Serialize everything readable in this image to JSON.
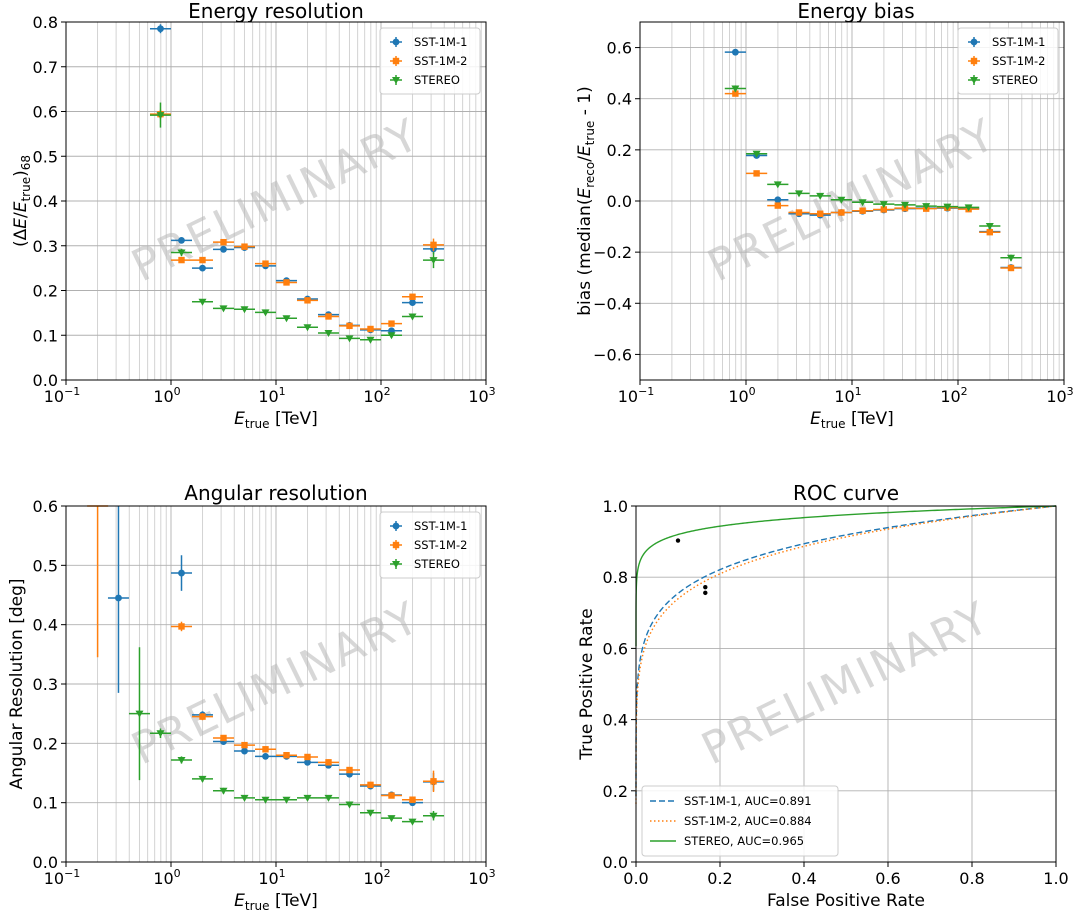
{
  "colors": {
    "sst1": "#1f77b4",
    "sst2": "#ff7f0e",
    "stereo": "#2ca02c",
    "grid": "#b0b0b0",
    "watermark": "#b8b8b8"
  },
  "watermark": "PRELIMINARY",
  "chart_data": [
    {
      "type": "scatter",
      "title": "Energy resolution",
      "xlabel": "E_true [TeV]",
      "ylabel": "(ΔE/E_true)_68",
      "xscale": "log",
      "xlim": [
        0.1,
        1000
      ],
      "ylim": [
        0,
        0.8
      ],
      "grid": true,
      "legend": "top-right",
      "yticks": [
        "0.0",
        "0.1",
        "0.2",
        "0.3",
        "0.4",
        "0.5",
        "0.6",
        "0.7",
        "0.8"
      ],
      "series": [
        {
          "name": "SST-1M-1",
          "marker": "circle",
          "color": "#1f77b4",
          "points": [
            [
              0.794,
              0.785,
              0.01
            ],
            [
              1.259,
              0.312,
              0.006
            ],
            [
              1.995,
              0.25,
              0.005
            ],
            [
              3.162,
              0.292,
              0.005
            ],
            [
              5.012,
              0.296,
              0.005
            ],
            [
              7.943,
              0.255,
              0.005
            ],
            [
              12.59,
              0.222,
              0.005
            ],
            [
              19.95,
              0.181,
              0.005
            ],
            [
              31.62,
              0.146,
              0.005
            ],
            [
              50.12,
              0.122,
              0.005
            ],
            [
              79.43,
              0.112,
              0.005
            ],
            [
              125.9,
              0.11,
              0.006
            ],
            [
              199.5,
              0.173,
              0.006
            ],
            [
              316.2,
              0.293,
              0.012
            ]
          ]
        },
        {
          "name": "SST-1M-2",
          "marker": "square",
          "color": "#ff7f0e",
          "points": [
            [
              0.794,
              0.594,
              0.01
            ],
            [
              1.259,
              0.268,
              0.006
            ],
            [
              1.995,
              0.268,
              0.005
            ],
            [
              3.162,
              0.308,
              0.005
            ],
            [
              5.012,
              0.298,
              0.005
            ],
            [
              7.943,
              0.26,
              0.005
            ],
            [
              12.59,
              0.218,
              0.005
            ],
            [
              19.95,
              0.178,
              0.005
            ],
            [
              31.62,
              0.142,
              0.005
            ],
            [
              50.12,
              0.121,
              0.005
            ],
            [
              79.43,
              0.114,
              0.005
            ],
            [
              125.9,
              0.126,
              0.006
            ],
            [
              199.5,
              0.186,
              0.006
            ],
            [
              316.2,
              0.302,
              0.014
            ]
          ]
        },
        {
          "name": "STEREO",
          "marker": "triangle",
          "color": "#2ca02c",
          "points": [
            [
              0.794,
              0.592,
              0.028
            ],
            [
              1.259,
              0.285,
              0.008
            ],
            [
              1.995,
              0.175,
              0.005
            ],
            [
              3.162,
              0.16,
              0.005
            ],
            [
              5.012,
              0.158,
              0.005
            ],
            [
              7.943,
              0.151,
              0.005
            ],
            [
              12.59,
              0.138,
              0.005
            ],
            [
              19.95,
              0.118,
              0.005
            ],
            [
              31.62,
              0.105,
              0.005
            ],
            [
              50.12,
              0.093,
              0.005
            ],
            [
              79.43,
              0.09,
              0.005
            ],
            [
              125.9,
              0.1,
              0.006
            ],
            [
              199.5,
              0.142,
              0.006
            ],
            [
              316.2,
              0.268,
              0.018
            ]
          ]
        }
      ]
    },
    {
      "type": "scatter",
      "title": "Energy bias",
      "xlabel": "E_true [TeV]",
      "ylabel": "bias (median(E_reco/E_true - 1)",
      "xscale": "log",
      "xlim": [
        0.1,
        1000
      ],
      "ylim": [
        -0.7,
        0.7
      ],
      "grid": true,
      "legend": "top-right",
      "yticks": [
        "−0.6",
        "−0.4",
        "−0.2",
        "0.0",
        "0.2",
        "0.4",
        "0.6"
      ],
      "series": [
        {
          "name": "SST-1M-1",
          "marker": "circle",
          "color": "#1f77b4",
          "points": [
            [
              0.794,
              0.582,
              0.01
            ],
            [
              1.259,
              0.178,
              0.008
            ],
            [
              1.995,
              0.005,
              0.006
            ],
            [
              3.162,
              -0.05,
              0.006
            ],
            [
              5.012,
              -0.055,
              0.006
            ],
            [
              7.943,
              -0.045,
              0.005
            ],
            [
              12.59,
              -0.04,
              0.005
            ],
            [
              19.95,
              -0.035,
              0.005
            ],
            [
              31.62,
              -0.03,
              0.005
            ],
            [
              50.12,
              -0.028,
              0.005
            ],
            [
              79.43,
              -0.028,
              0.005
            ],
            [
              125.9,
              -0.03,
              0.006
            ],
            [
              199.5,
              -0.12,
              0.008
            ],
            [
              316.2,
              -0.26,
              0.012
            ]
          ]
        },
        {
          "name": "SST-1M-2",
          "marker": "square",
          "color": "#ff7f0e",
          "points": [
            [
              0.794,
              0.42,
              0.01
            ],
            [
              1.259,
              0.108,
              0.008
            ],
            [
              1.995,
              -0.018,
              0.006
            ],
            [
              3.162,
              -0.045,
              0.006
            ],
            [
              5.012,
              -0.05,
              0.006
            ],
            [
              7.943,
              -0.045,
              0.005
            ],
            [
              12.59,
              -0.038,
              0.005
            ],
            [
              19.95,
              -0.033,
              0.005
            ],
            [
              31.62,
              -0.028,
              0.005
            ],
            [
              50.12,
              -0.03,
              0.005
            ],
            [
              79.43,
              -0.026,
              0.005
            ],
            [
              125.9,
              -0.032,
              0.006
            ],
            [
              199.5,
              -0.122,
              0.008
            ],
            [
              316.2,
              -0.262,
              0.012
            ]
          ]
        },
        {
          "name": "STEREO",
          "marker": "triangle",
          "color": "#2ca02c",
          "points": [
            [
              0.794,
              0.44,
              0.012
            ],
            [
              1.259,
              0.185,
              0.008
            ],
            [
              1.995,
              0.065,
              0.006
            ],
            [
              3.162,
              0.03,
              0.006
            ],
            [
              5.012,
              0.02,
              0.005
            ],
            [
              7.943,
              0.005,
              0.005
            ],
            [
              12.59,
              -0.005,
              0.005
            ],
            [
              19.95,
              -0.012,
              0.005
            ],
            [
              31.62,
              -0.015,
              0.005
            ],
            [
              50.12,
              -0.02,
              0.005
            ],
            [
              79.43,
              -0.022,
              0.005
            ],
            [
              125.9,
              -0.025,
              0.006
            ],
            [
              199.5,
              -0.098,
              0.008
            ],
            [
              316.2,
              -0.222,
              0.012
            ]
          ]
        }
      ]
    },
    {
      "type": "scatter",
      "title": "Angular resolution",
      "xlabel": "E_true [TeV]",
      "ylabel": "Angular Resolution [deg]",
      "xscale": "log",
      "xlim": [
        0.1,
        1000
      ],
      "ylim": [
        0,
        0.6
      ],
      "grid": true,
      "legend": "top-right",
      "yticks": [
        "0.0",
        "0.1",
        "0.2",
        "0.3",
        "0.4",
        "0.5",
        "0.6"
      ],
      "series": [
        {
          "name": "SST-1M-1",
          "marker": "circle",
          "color": "#1f77b4",
          "points": [
            [
              0.316,
              0.445,
              0.16
            ],
            [
              1.259,
              0.487,
              0.03
            ],
            [
              1.995,
              0.248,
              0.006
            ],
            [
              3.162,
              0.203,
              0.005
            ],
            [
              5.012,
              0.187,
              0.005
            ],
            [
              7.943,
              0.178,
              0.005
            ],
            [
              12.59,
              0.178,
              0.005
            ],
            [
              19.95,
              0.168,
              0.005
            ],
            [
              31.62,
              0.163,
              0.005
            ],
            [
              50.12,
              0.148,
              0.005
            ],
            [
              79.43,
              0.128,
              0.005
            ],
            [
              125.9,
              0.113,
              0.005
            ],
            [
              199.5,
              0.1,
              0.005
            ],
            [
              316.2,
              0.135,
              0.015
            ]
          ]
        },
        {
          "name": "SST-1M-2",
          "marker": "square",
          "color": "#ff7f0e",
          "points": [
            [
              0.2,
              0.6,
              0.255
            ],
            [
              1.259,
              0.397,
              0.008
            ],
            [
              1.995,
              0.245,
              0.006
            ],
            [
              3.162,
              0.209,
              0.005
            ],
            [
              5.012,
              0.197,
              0.005
            ],
            [
              7.943,
              0.19,
              0.005
            ],
            [
              12.59,
              0.18,
              0.005
            ],
            [
              19.95,
              0.177,
              0.005
            ],
            [
              31.62,
              0.168,
              0.005
            ],
            [
              50.12,
              0.155,
              0.005
            ],
            [
              79.43,
              0.13,
              0.005
            ],
            [
              125.9,
              0.112,
              0.005
            ],
            [
              199.5,
              0.105,
              0.005
            ],
            [
              316.2,
              0.136,
              0.018
            ]
          ]
        },
        {
          "name": "STEREO",
          "marker": "triangle",
          "color": "#2ca02c",
          "points": [
            [
              0.501,
              0.25,
              0.112
            ],
            [
              0.794,
              0.217,
              0.008
            ],
            [
              1.259,
              0.172,
              0.006
            ],
            [
              1.995,
              0.14,
              0.005
            ],
            [
              3.162,
              0.12,
              0.005
            ],
            [
              5.012,
              0.108,
              0.004
            ],
            [
              7.943,
              0.105,
              0.004
            ],
            [
              12.59,
              0.105,
              0.004
            ],
            [
              19.95,
              0.108,
              0.004
            ],
            [
              31.62,
              0.108,
              0.004
            ],
            [
              50.12,
              0.097,
              0.004
            ],
            [
              79.43,
              0.083,
              0.004
            ],
            [
              125.9,
              0.074,
              0.004
            ],
            [
              199.5,
              0.068,
              0.004
            ],
            [
              316.2,
              0.078,
              0.008
            ]
          ]
        }
      ]
    },
    {
      "type": "line",
      "title": "ROC curve",
      "xlabel": "False Positive Rate",
      "ylabel": "True Positive Rate",
      "xlim": [
        0,
        1
      ],
      "ylim": [
        0,
        1
      ],
      "grid": true,
      "legend": "bottom-left",
      "xticks": [
        "0.0",
        "0.2",
        "0.4",
        "0.6",
        "0.8",
        "1.0"
      ],
      "yticks": [
        "0.0",
        "0.2",
        "0.4",
        "0.6",
        "0.8",
        "1.0"
      ],
      "series": [
        {
          "name": "SST-1M-1, AUC=0.891",
          "color": "#1f77b4",
          "style": "dashed",
          "auc": 0.891,
          "marker_point": [
            0.165,
            0.772
          ]
        },
        {
          "name": "SST-1M-2, AUC=0.884",
          "color": "#ff7f0e",
          "style": "dotted",
          "auc": 0.884,
          "marker_point": [
            0.165,
            0.756
          ]
        },
        {
          "name": "STEREO, AUC=0.965",
          "color": "#2ca02c",
          "style": "solid",
          "auc": 0.965,
          "marker_point": [
            0.1,
            0.903
          ]
        }
      ]
    }
  ]
}
